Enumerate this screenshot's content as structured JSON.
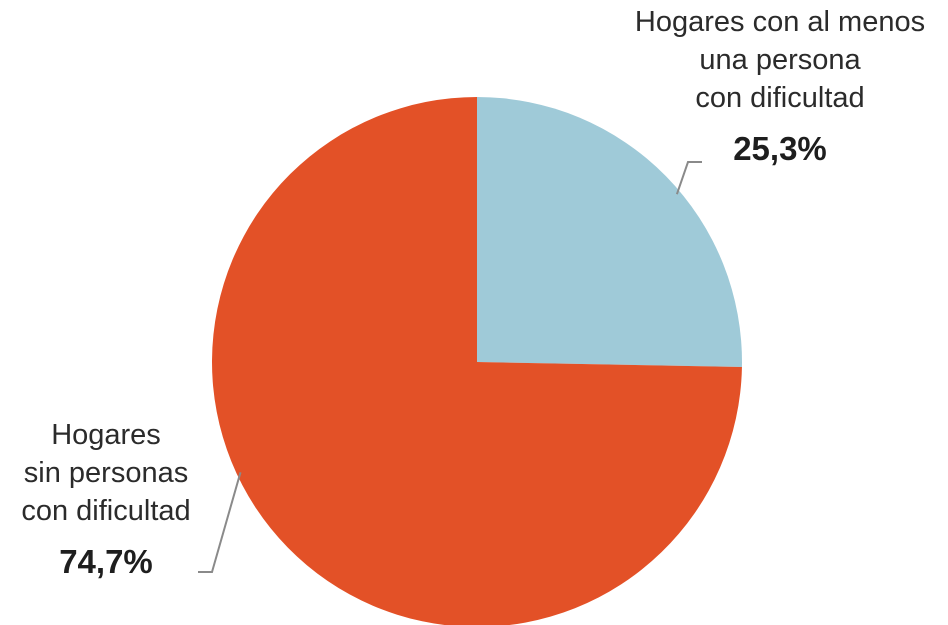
{
  "chart_data": {
    "type": "pie",
    "title": "",
    "slices": [
      {
        "lines": [
          "Hogares con al menos",
          "una persona",
          "con dificultad"
        ],
        "value_label": "25,3%",
        "value": 25.3,
        "color": "#9fcad8"
      },
      {
        "lines": [
          "Hogares",
          "sin personas",
          "con dificultad"
        ],
        "value_label": "74,7%",
        "value": 74.7,
        "color": "#e35127"
      }
    ]
  }
}
